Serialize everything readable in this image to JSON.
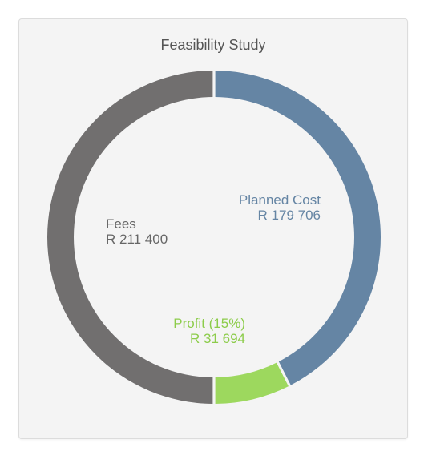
{
  "chart_data": {
    "type": "pie",
    "title": "Feasibility Study",
    "slices": [
      {
        "label": "Planned Cost",
        "value": 179706,
        "display": "R 179 706",
        "color": "#6585a4"
      },
      {
        "label": "Profit (15%)",
        "value": 31694,
        "display": "R 31 694",
        "color": "#9dd85e"
      },
      {
        "label": "Fees",
        "value": 211400,
        "display": "R 211 400",
        "color": "#716f6f"
      }
    ],
    "label_colors": [
      "#6585a4",
      "#8ccc4a",
      "#666666"
    ],
    "donut": true
  }
}
